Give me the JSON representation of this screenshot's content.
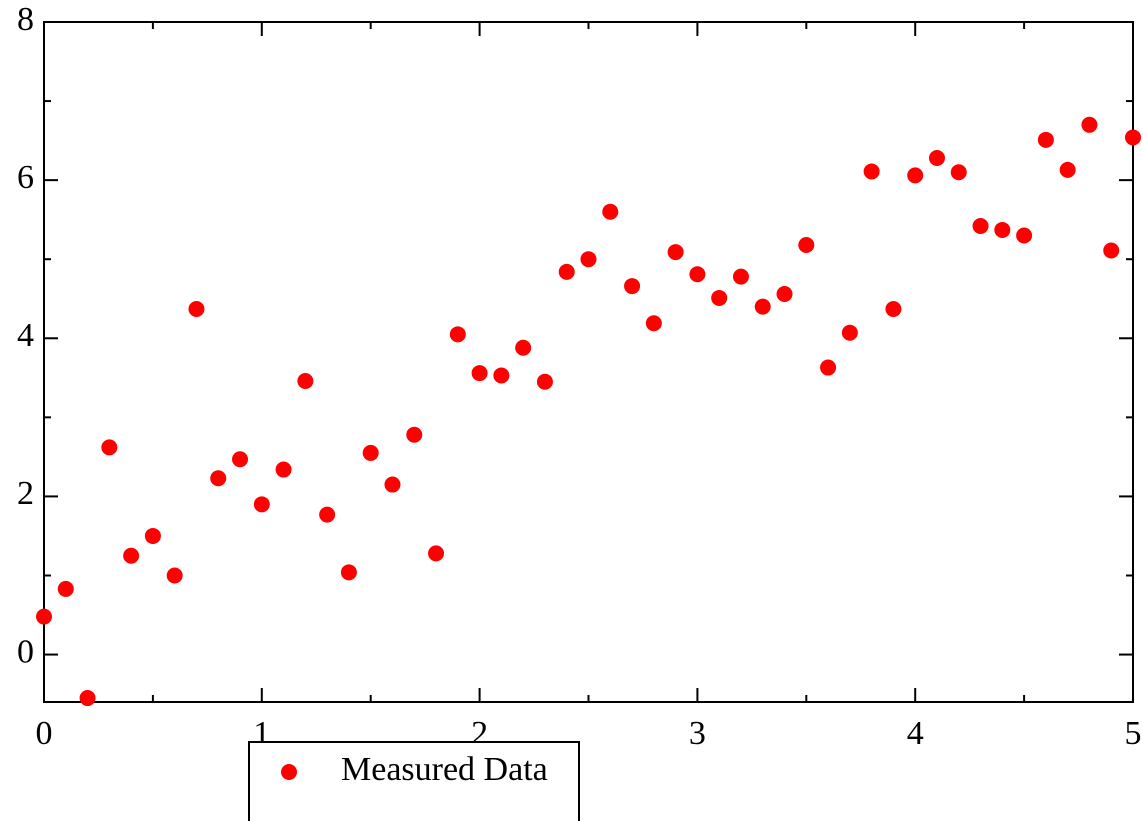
{
  "chart_data": {
    "type": "scatter",
    "title": "",
    "xlabel": "",
    "ylabel": "",
    "xlim": [
      0,
      5
    ],
    "ylim": [
      -0.6,
      8
    ],
    "xticks": [
      0,
      1,
      2,
      3,
      4,
      5
    ],
    "yticks": [
      0,
      2,
      4,
      6,
      8
    ],
    "grid": false,
    "legend_position": "bottom-center",
    "series": [
      {
        "name": "Measured Data",
        "color": "#ff0000",
        "marker": "circle",
        "x": [
          0.0,
          0.1,
          0.2,
          0.3,
          0.4,
          0.5,
          0.6,
          0.7,
          0.8,
          0.9,
          1.0,
          1.1,
          1.2,
          1.3,
          1.4,
          1.5,
          1.6,
          1.7,
          1.8,
          1.9,
          2.0,
          2.1,
          2.2,
          2.3,
          2.4,
          2.5,
          2.6,
          2.7,
          2.8,
          2.9,
          3.0,
          3.1,
          3.2,
          3.3,
          3.4,
          3.5,
          3.6,
          3.7,
          3.8,
          3.9,
          4.0,
          4.1,
          4.2,
          4.3,
          4.4,
          4.5,
          4.6,
          4.7,
          4.8,
          4.9,
          5.0
        ],
        "y": [
          0.48,
          0.83,
          -0.55,
          2.62,
          1.25,
          1.5,
          1.0,
          4.37,
          2.23,
          2.47,
          1.9,
          2.34,
          3.46,
          1.77,
          1.04,
          2.55,
          2.15,
          2.78,
          1.28,
          4.05,
          3.56,
          3.53,
          3.88,
          3.45,
          4.84,
          5.0,
          5.6,
          4.66,
          4.19,
          5.09,
          4.81,
          4.51,
          4.78,
          4.4,
          4.56,
          5.18,
          3.63,
          4.07,
          6.11,
          4.37,
          6.06,
          6.28,
          6.1,
          5.42,
          5.37,
          5.3,
          6.51,
          6.13,
          6.7,
          5.11,
          6.54
        ]
      }
    ]
  }
}
